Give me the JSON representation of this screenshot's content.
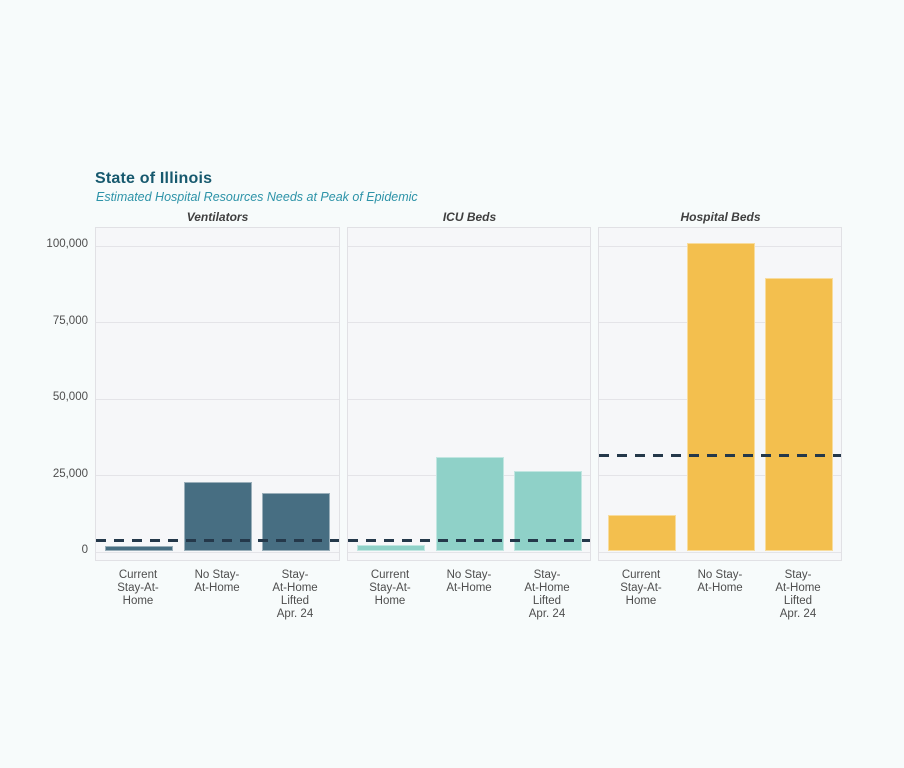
{
  "page": {
    "background": "#f7fbfb"
  },
  "header": {
    "title": "State of Illinois",
    "subtitle": "Estimated Hospital Resources Needs at Peak of Epidemic",
    "title_color": "#17596e",
    "subtitle_color": "#2d93a8"
  },
  "chart_data": {
    "type": "bar",
    "layout": "three-panel small multiples, shared y-axis",
    "categories": [
      "Current Stay-At-Home",
      "No Stay-At-Home",
      "Stay-At-Home Lifted Apr. 24"
    ],
    "category_lines": [
      [
        "Current",
        "Stay-At-",
        "Home"
      ],
      [
        "No Stay-",
        "At-Home"
      ],
      [
        "Stay-",
        "At-Home",
        "Lifted",
        "Apr. 24"
      ]
    ],
    "y_ticks": [
      0,
      25000,
      50000,
      75000,
      100000
    ],
    "y_tick_labels": [
      "0",
      "25,000",
      "50,000",
      "75,000",
      "100,000"
    ],
    "ylim": [
      0,
      106000
    ],
    "grid": true,
    "legend": "none",
    "capacity_line_style": "dashed",
    "capacity_line_color": "#24384a",
    "panels": [
      {
        "title": "Ventilators",
        "bar_color": "#476e82",
        "values": [
          1700,
          22600,
          19100
        ],
        "capacity_line": 3600
      },
      {
        "title": "ICU Beds",
        "bar_color": "#8fd1c8",
        "values": [
          2000,
          30900,
          26300
        ],
        "capacity_line": 3600
      },
      {
        "title": "Hospital Beds",
        "bar_color": "#f3bf4e",
        "values": [
          12100,
          101000,
          89400
        ],
        "capacity_line": 31500
      }
    ]
  }
}
